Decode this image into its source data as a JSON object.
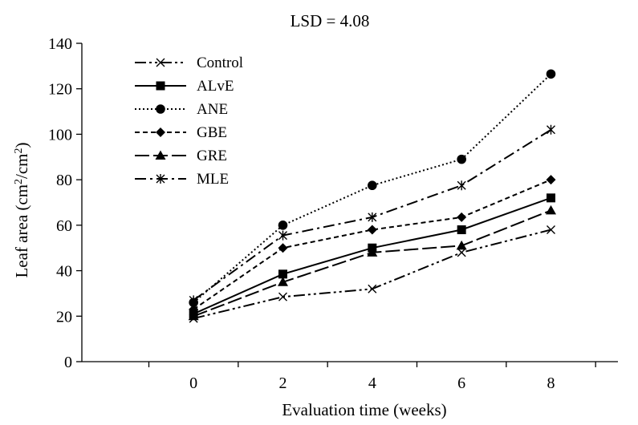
{
  "chart_data": {
    "type": "line",
    "annotation": "LSD = 4.08",
    "xlabel": "Evaluation time (weeks)",
    "ylabel": {
      "prefix": "Leaf area (cm",
      "sup1": "2",
      "mid": "/cm",
      "sup2": "2",
      "suffix": ")"
    },
    "x": [
      0,
      2,
      4,
      6,
      8
    ],
    "xlim": [
      -2.5,
      9.5
    ],
    "ylim": [
      0,
      140
    ],
    "yticks": [
      0,
      20,
      40,
      60,
      80,
      100,
      120,
      140
    ],
    "xticks": [
      0,
      2,
      4,
      6,
      8
    ],
    "grid": false,
    "legend_position": "top-left",
    "series": [
      {
        "name": "Control",
        "values": [
          19,
          28.5,
          32,
          48,
          58
        ],
        "marker": "x",
        "dash": "14 4 3 4 3 4"
      },
      {
        "name": "ALvE",
        "values": [
          21,
          38.5,
          50,
          58,
          72
        ],
        "marker": "square",
        "dash": ""
      },
      {
        "name": "ANE",
        "values": [
          26,
          60,
          77.5,
          89,
          126.5
        ],
        "marker": "circle",
        "dash": "2 3"
      },
      {
        "name": "GBE",
        "values": [
          23,
          50,
          58,
          63.5,
          80
        ],
        "marker": "diamond",
        "dash": "6 4"
      },
      {
        "name": "GRE",
        "values": [
          20,
          35,
          48,
          51,
          66.5
        ],
        "marker": "triangle",
        "dash": "18 5"
      },
      {
        "name": "MLE",
        "values": [
          27,
          55.5,
          63.5,
          77.5,
          102
        ],
        "marker": "asterisk",
        "dash": "14 5 3 5"
      }
    ]
  }
}
